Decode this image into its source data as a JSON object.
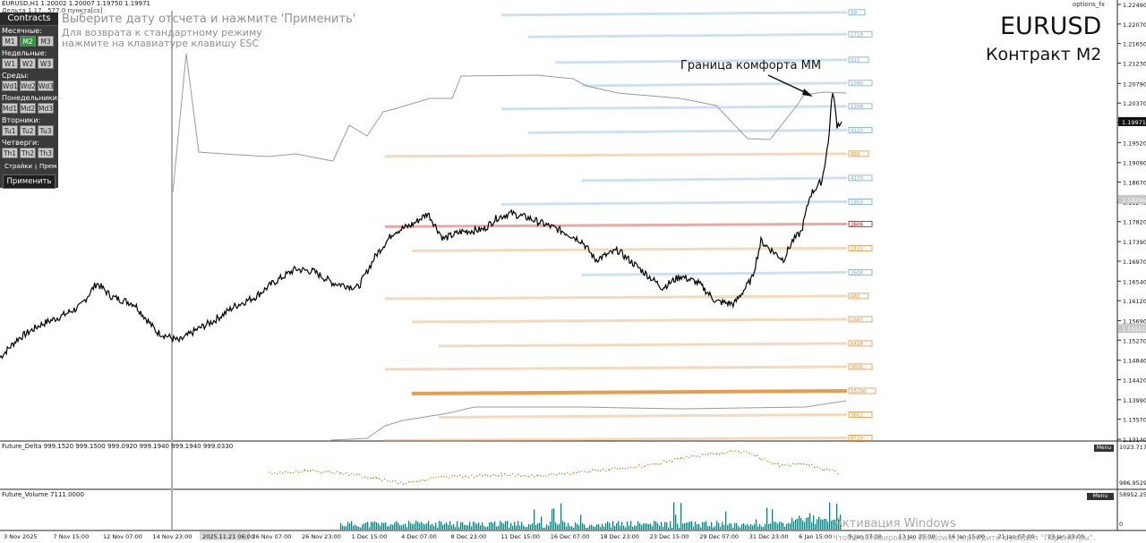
{
  "window": {
    "symbol_line": "EURUSD,H1  1.20002 1.20007 1.19750 1.19971",
    "sub_line": "Дельта  1.17...577.0 пункта[cs]",
    "options_label": "options_fx"
  },
  "panel": {
    "title": "Contracts",
    "groups": [
      {
        "label": "Месячные:",
        "buttons": [
          "M1",
          "M2",
          "M3"
        ],
        "active": 1
      },
      {
        "label": "Недельные:",
        "buttons": [
          "W1",
          "W2",
          "W3"
        ],
        "active": -1
      },
      {
        "label": "Среды:",
        "buttons": [
          "Wd1",
          "Wd2",
          "Wd3"
        ],
        "active": -1
      },
      {
        "label": "Понедельники:",
        "buttons": [
          "Md1",
          "Md2",
          "Md3"
        ],
        "active": -1
      },
      {
        "label": "Вторники:",
        "buttons": [
          "Tu1",
          "Tu2",
          "Tu3"
        ],
        "active": -1
      },
      {
        "label": "Четверги:",
        "buttons": [
          "Th1",
          "Th2",
          "Th3"
        ],
        "active": -1
      }
    ],
    "radio_strikes": "Страйки",
    "radio_prem": "Прем",
    "apply": "Применить"
  },
  "hints": {
    "line1": "Выберите дату отсчета и нажмите 'Применить'",
    "line2": "Для возврата к стандартному режиму",
    "line3": "нажмите на клавиатуре клавишу ESC"
  },
  "overlay": {
    "title": "EURUSD",
    "subtitle": "Контракт M2",
    "annotation": "Граница комфорта ММ"
  },
  "windows_activation": {
    "line1": "Активация Windows",
    "line2": "Чтобы активировать Windows, перейдите в раздел \"Параметры\"."
  },
  "subwindows": {
    "delta_label": "Future_Delta 999.1520 999.1500 999.0920 999.1940 999.1940 999.0330",
    "delta_top": "1023.7171",
    "delta_bottom": "986.9529",
    "volume_label": "Future_Volume 7111.0000",
    "volume_top": "58952.25",
    "volume_zero": "0",
    "menu": "Menu"
  },
  "chart_data": {
    "type": "line",
    "title": "EURUSD",
    "xlabel": "",
    "ylabel": "",
    "ylim": [
      1.1314,
      1.2249
    ],
    "price_ticks": [
      "1.22490",
      "1.22070",
      "1.21650",
      "1.21230",
      "1.20790",
      "1.20370",
      "1.19950",
      "1.19520",
      "1.19090",
      "1.18670",
      "1.18240",
      "1.17820",
      "1.17390",
      "1.16970",
      "1.16540",
      "1.16120",
      "1.15690",
      "1.15270",
      "1.14840",
      "1.14420",
      "1.13990",
      "1.13570",
      "1.13140"
    ],
    "current_price": "1.19971",
    "marked_prices": [
      "1.18296",
      "1.15521"
    ],
    "time_ticks": [
      "3 Nov 2025",
      "7 Nov 15:00",
      "12 Nov 07:00",
      "14 Nov 23:00",
      "2025.11.21 06:00",
      "26 Nov 07:00",
      "26 Nov 23:00",
      "1 Dec 15:00",
      "4 Dec 07:00",
      "8 Dec 23:00",
      "11 Dec 15:00",
      "16 Dec 07:00",
      "18 Dec 23:00",
      "23 Dec 15:00",
      "29 Dec 07:00",
      "31 Dec 23:00",
      "6 Jan 15:00",
      "9 Jan 07:00",
      "13 Jan 23:00",
      "16 Jan 15:00",
      "21 Jan 07:00",
      "23 Jan 23:00"
    ],
    "price_path": [
      [
        0,
        1.149
      ],
      [
        20,
        1.153
      ],
      [
        45,
        1.156
      ],
      [
        70,
        1.158
      ],
      [
        90,
        1.16
      ],
      [
        108,
        1.165
      ],
      [
        125,
        1.162
      ],
      [
        150,
        1.1605
      ],
      [
        175,
        1.1545
      ],
      [
        200,
        1.1525
      ],
      [
        220,
        1.155
      ],
      [
        240,
        1.157
      ],
      [
        262,
        1.16
      ],
      [
        285,
        1.162
      ],
      [
        305,
        1.165
      ],
      [
        330,
        1.168
      ],
      [
        350,
        1.1675
      ],
      [
        372,
        1.165
      ],
      [
        400,
        1.164
      ],
      [
        420,
        1.171
      ],
      [
        440,
        1.176
      ],
      [
        460,
        1.1775
      ],
      [
        478,
        1.18
      ],
      [
        495,
        1.1745
      ],
      [
        515,
        1.176
      ],
      [
        540,
        1.1765
      ],
      [
        555,
        1.179
      ],
      [
        570,
        1.18
      ],
      [
        590,
        1.179
      ],
      [
        610,
        1.1775
      ],
      [
        630,
        1.176
      ],
      [
        650,
        1.174
      ],
      [
        665,
        1.17
      ],
      [
        690,
        1.172
      ],
      [
        715,
        1.168
      ],
      [
        740,
        1.164
      ],
      [
        760,
        1.1665
      ],
      [
        780,
        1.165
      ],
      [
        800,
        1.161
      ],
      [
        820,
        1.1605
      ],
      [
        840,
        1.166
      ],
      [
        850,
        1.174
      ],
      [
        862,
        1.172
      ],
      [
        875,
        1.17
      ],
      [
        885,
        1.174
      ],
      [
        895,
        1.176
      ],
      [
        905,
        1.184
      ],
      [
        918,
        1.187
      ],
      [
        925,
        1.195
      ],
      [
        930,
        1.2065
      ],
      [
        935,
        1.199
      ],
      [
        940,
        1.1997
      ]
    ],
    "options_levels": [
      {
        "label": "50",
        "price": 1.2232,
        "color": "#6fa8dc"
      },
      {
        "label": "1719",
        "price": 1.2185,
        "color": "#6fa8dc"
      },
      {
        "label": "911",
        "price": 1.213,
        "color": "#6fa8dc"
      },
      {
        "label": "1040",
        "price": 1.208,
        "color": "#6fa8dc"
      },
      {
        "label": "1208",
        "price": 1.203,
        "color": "#6fa8dc"
      },
      {
        "label": "4120",
        "price": 1.1979,
        "color": "#6fa8dc"
      },
      {
        "label": "459",
        "price": 1.1928,
        "color": "#e69138"
      },
      {
        "label": "4173",
        "price": 1.1876,
        "color": "#6fa8dc"
      },
      {
        "label": "1859",
        "price": 1.1825,
        "color": "#6fa8dc"
      },
      {
        "label": "2606",
        "price": 1.1777,
        "color": "#cc0000"
      },
      {
        "label": "2433",
        "price": 1.1725,
        "color": "#e69138"
      },
      {
        "label": "2608",
        "price": 1.1673,
        "color": "#6fa8dc"
      },
      {
        "label": "481",
        "price": 1.1622,
        "color": "#e69138"
      },
      {
        "label": "1687",
        "price": 1.1572,
        "color": "#e69138"
      },
      {
        "label": "6428",
        "price": 1.152,
        "color": "#e69138"
      },
      {
        "label": "3836",
        "price": 1.147,
        "color": "#e69138"
      },
      {
        "label": "15296",
        "price": 1.1418,
        "color": "#e69138"
      },
      {
        "label": "5602",
        "price": 1.1367,
        "color": "#e69138"
      },
      {
        "label": "8729",
        "price": 1.1317,
        "color": "#e69138"
      }
    ]
  }
}
